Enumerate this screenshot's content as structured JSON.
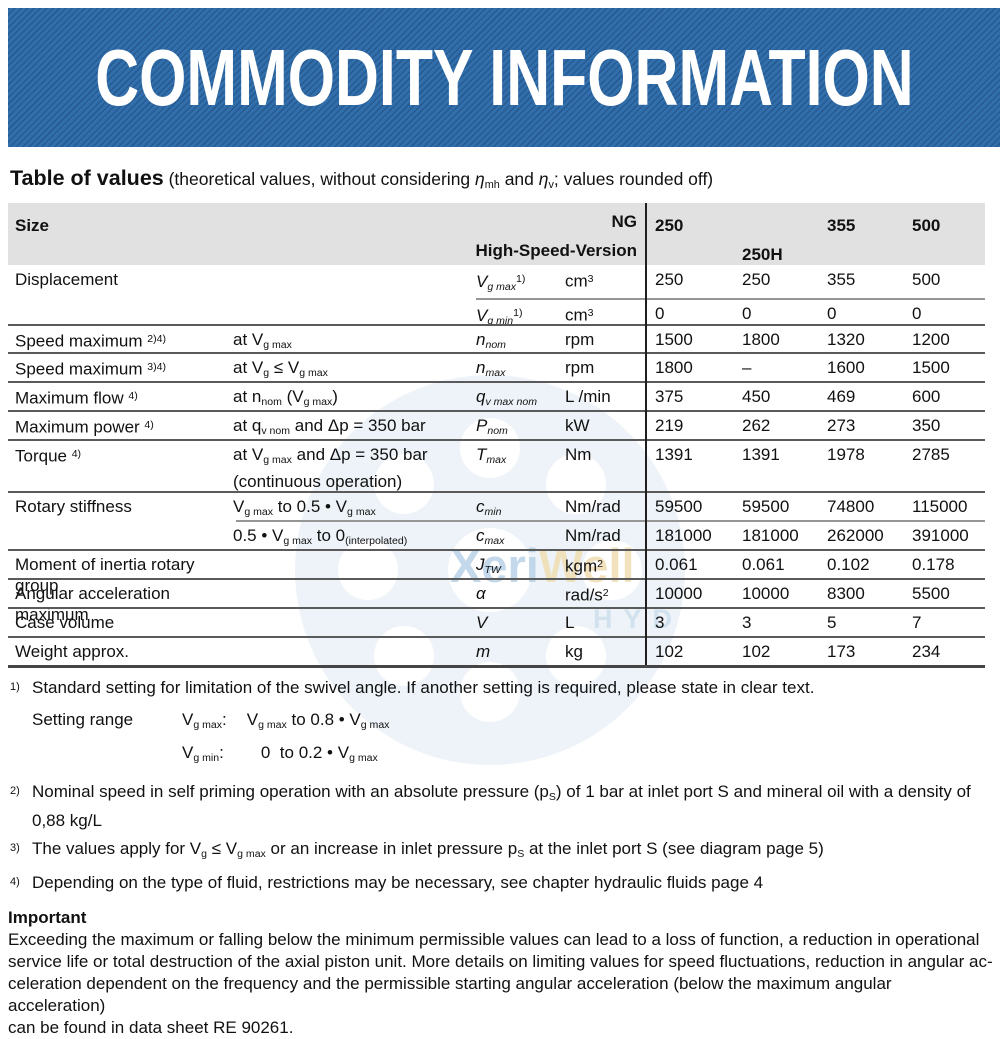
{
  "banner": {
    "title": "COMMODITY INFORMATION",
    "bg_color": "#2f6dab"
  },
  "heading": {
    "title": "Table of values",
    "subtitle_html": "(theoretical values, without considering <i>η</i><sub>mh</sub> and <i>η</i><sub>v</sub>; values rounded off)"
  },
  "table": {
    "header": {
      "size": "Size",
      "ng": "NG",
      "high_speed": "High-Speed-Version",
      "ng_cols": [
        "250",
        "355",
        "500"
      ],
      "high_speed_col": "250H"
    },
    "rows": [
      {
        "label_html": "Displacement",
        "cond_html": "",
        "sym_html": "<i>V<sub>g max</sub></i><sup>1)</sup>",
        "unit_html": "cm<sup>3</sup>",
        "values": [
          "250",
          "250",
          "355",
          "500"
        ]
      },
      {
        "label_html": "",
        "cond_html": "",
        "sym_html": "<i>V<sub>g min</sub></i><sup>1)</sup>",
        "unit_html": "cm<sup>3</sup>",
        "values": [
          "0",
          "0",
          "0",
          "0"
        ]
      },
      {
        "label_html": "Speed maximum <sup>2)4)</sup>",
        "cond_html": "at V<sub>g max</sub>",
        "sym_html": "<i>n<sub>nom</sub></i>",
        "unit_html": "rpm",
        "values": [
          "1500",
          "1800",
          "1320",
          "1200"
        ]
      },
      {
        "label_html": "Speed maximum <sup>3)4)</sup>",
        "cond_html": "at V<sub>g</sub> ≤ V<sub>g max</sub>",
        "sym_html": "<i>n<sub>max</sub></i>",
        "unit_html": "rpm",
        "values": [
          "1800",
          "–",
          "1600",
          "1500"
        ]
      },
      {
        "label_html": "Maximum flow <sup>4)</sup>",
        "cond_html": "at n<sub>nom</sub> (V<sub>g max</sub>)",
        "sym_html": "<i>q<sub>v max nom</sub></i>",
        "unit_html": "L /min",
        "values": [
          "375",
          "450",
          "469",
          "600"
        ]
      },
      {
        "label_html": "Maximum power <sup>4)</sup>",
        "cond_html": "at q<sub>v nom</sub> and Δp = 350 bar",
        "sym_html": "<i>P<sub>nom</sub></i>",
        "unit_html": "kW",
        "values": [
          "219",
          "262",
          "273",
          "350"
        ]
      },
      {
        "label_html": "Torque <sup>4)</sup>",
        "cond_html": "at V<sub>g max</sub> and Δp = 350 bar<br>(continuous operation)",
        "sym_html": "<i>T<sub>max</sub></i>",
        "unit_html": "Nm",
        "values": [
          "1391",
          "1391",
          "1978",
          "2785"
        ]
      },
      {
        "label_html": "Rotary stiffness",
        "cond_html": "V<sub>g max</sub> to 0.5 • V<sub>g max</sub>",
        "sym_html": "<i>c<sub>min</sub></i>",
        "unit_html": "Nm/rad",
        "values": [
          "59500",
          "59500",
          "74800",
          "115000"
        ]
      },
      {
        "label_html": "",
        "cond_html": "0.5 • V<sub>g max</sub> to 0<sub>(interpolated)</sub>",
        "sym_html": "<i>c<sub>max</sub></i>",
        "unit_html": "Nm/rad",
        "values": [
          "181000",
          "181000",
          "262000",
          "391000"
        ]
      },
      {
        "label_html": "Moment of inertia rotary group",
        "cond_html": "",
        "sym_html": "<i>J<sub>TW</sub></i>",
        "unit_html": "kgm<sup>2</sup>",
        "values": [
          "0.061",
          "0.061",
          "0.102",
          "0.178"
        ]
      },
      {
        "label_html": "Angular acceleration maximum",
        "cond_html": "",
        "sym_html": "<i>α</i>",
        "unit_html": "rad/s<sup>2</sup>",
        "values": [
          "10000",
          "10000",
          "8300",
          "5500"
        ]
      },
      {
        "label_html": "Case volume",
        "cond_html": "",
        "sym_html": "<i>V</i>",
        "unit_html": "L",
        "values": [
          "3",
          "3",
          "5",
          "7"
        ]
      },
      {
        "label_html": "Weight approx.",
        "cond_html": "",
        "sym_html": "<i>m</i>",
        "unit_html": "kg",
        "values": [
          "102",
          "102",
          "173",
          "234"
        ]
      }
    ]
  },
  "footnotes": [
    {
      "marker": "1)",
      "text_html": "Standard setting for limitation of the swivel angle. If another setting is required, please state in clear text."
    },
    {
      "marker": "2)",
      "text_html": "Nominal speed in self priming operation with an absolute pressure (p<sub>S</sub>) of 1 bar at inlet port S and mineral oil with a density of<br>0,88 kg/L"
    },
    {
      "marker": "3)",
      "text_html": "The values apply for V<sub>g</sub> ≤ V<sub>g max</sub> or an increase in inlet pressure p<sub>S</sub> at the inlet port S (see diagram page 5)"
    },
    {
      "marker": "4)",
      "text_html": "Depending on the type of fluid, restrictions may be necessary, see chapter hydraulic fluids page 4"
    }
  ],
  "setting_range": {
    "label": "Setting range",
    "rows": [
      {
        "key_html": "V<sub>g max</sub>:",
        "val_html": "V<sub>g max</sub> to 0.8 • V<sub>g max</sub>"
      },
      {
        "key_html": "V<sub>g min</sub>:",
        "val_html": "&nbsp;&nbsp;&nbsp;0&nbsp; to 0.2 • V<sub>g max</sub>"
      }
    ]
  },
  "important": {
    "title": "Important",
    "body_html": "Exceeding the maximum or falling below the minimum permissible values can lead to a loss of function, a reduction in operational<br>service life or total destruction of the axial piston unit. More details on limiting values for speed fluctuations, reduction in angular ac-<br>celeration dependent on the frequency and the permissible starting angular acceleration (below the maximum angular acceleration)<br>can be found in data sheet RE 90261."
  },
  "watermark": {
    "part1": "Xeri",
    "part2": "Well",
    "line2": "HYD"
  }
}
